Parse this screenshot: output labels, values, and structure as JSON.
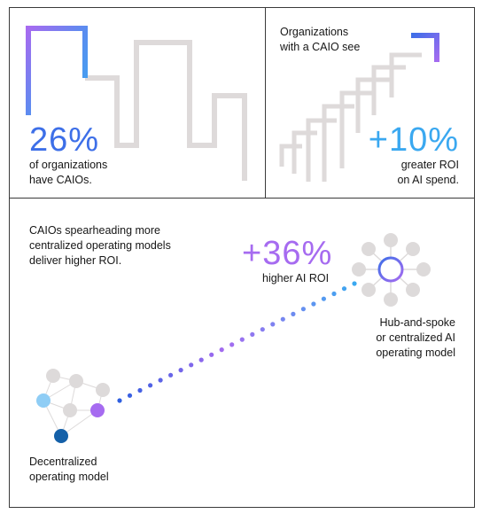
{
  "panel_caio_share": {
    "stat": "26%",
    "caption_line1": "of organizations",
    "caption_line2": "have CAIOs."
  },
  "panel_caio_roi": {
    "intro_line1": "Organizations",
    "intro_line2": "with a CAIO see",
    "stat": "+10%",
    "caption_line1": "greater ROI",
    "caption_line2": "on AI spend."
  },
  "panel_models": {
    "intro_line1": "CAIOs spearheading more",
    "intro_line2": "centralized operating models",
    "intro_line3": "deliver higher ROI.",
    "stat": "+36%",
    "stat_caption": "higher AI ROI",
    "hub_label_line1": "Hub-and-spoke",
    "hub_label_line2": "or centralized AI",
    "hub_label_line3": "operating model",
    "decentral_label_line1": "Decentralized",
    "decentral_label_line2": "operating model"
  },
  "colors": {
    "blue": "#3d6fe8",
    "cyan": "#3aa8f0",
    "purple": "#a66bf0",
    "gray": "#d9d6d6",
    "navy": "#1460a8"
  }
}
